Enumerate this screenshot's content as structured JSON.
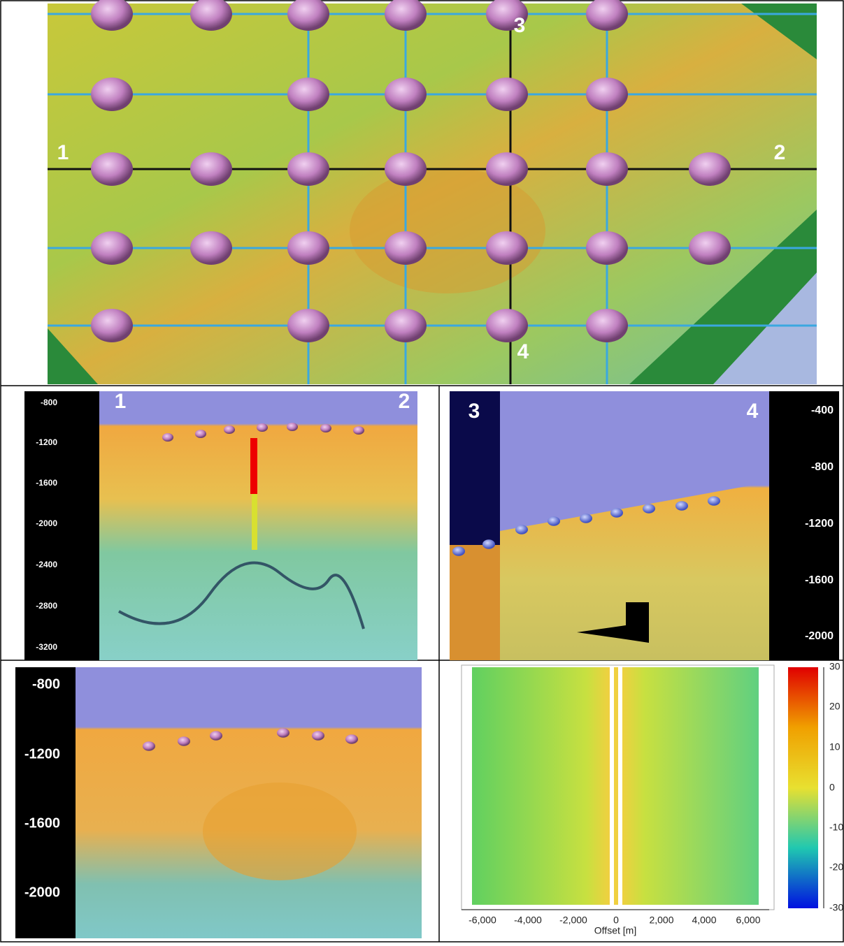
{
  "map_panel": {
    "labels": [
      "1",
      "2",
      "3",
      "4"
    ]
  },
  "section_1_2": {
    "labels": [
      "1",
      "2"
    ],
    "depth_ticks": [
      "-800",
      "-1200",
      "-1600",
      "-2000",
      "-2400",
      "-2800",
      "-3200"
    ]
  },
  "section_3_4": {
    "labels": [
      "3",
      "4"
    ],
    "depth_ticks": [
      "-400",
      "-800",
      "-1200",
      "-1600",
      "-2000"
    ]
  },
  "section_zoom": {
    "depth_ticks": [
      "-800",
      "-1200",
      "-1600",
      "-2000"
    ]
  },
  "offset_panel": {
    "x_ticks": [
      "-6,000",
      "-4,000",
      "-2,000",
      "0",
      "2,000",
      "4,000",
      "6,000"
    ],
    "x_label": "Offset [m]",
    "colorbar_ticks": [
      "30",
      "20",
      "10",
      "0",
      "-10",
      "-20",
      "-30"
    ]
  }
}
